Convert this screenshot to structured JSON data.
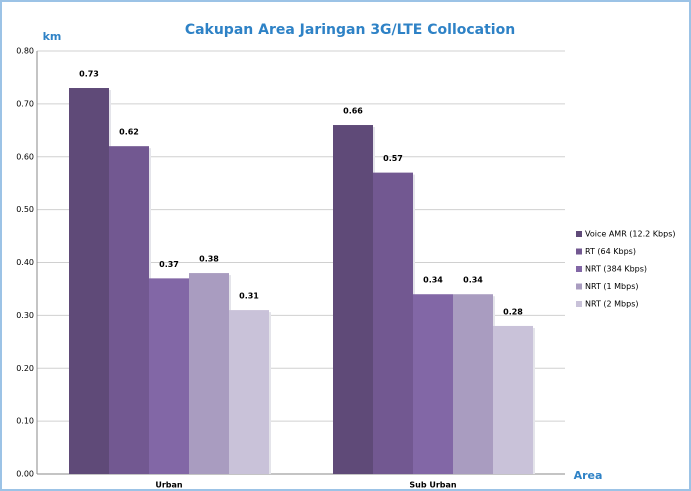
{
  "chart_data": {
    "type": "bar",
    "title": "Cakupan Area Jaringan 3G/LTE Collocation",
    "ylabel": "km",
    "xlabel": "Area",
    "categories": [
      "Urban",
      "Sub Urban"
    ],
    "series": [
      {
        "name": "Voice AMR (12.2 Kbps)",
        "color": "#5f4a78",
        "values": [
          0.73,
          0.66
        ]
      },
      {
        "name": "RT (64 Kbps)",
        "color": "#725891",
        "values": [
          0.62,
          0.57
        ]
      },
      {
        "name": "NRT (384 Kbps)",
        "color": "#8267a6",
        "values": [
          0.37,
          0.34
        ]
      },
      {
        "name": "NRT (1 Mbps)",
        "color": "#a99cc0",
        "values": [
          0.38,
          0.34
        ]
      },
      {
        "name": "NRT (2 Mbps)",
        "color": "#c9c2d9",
        "values": [
          0.31,
          0.28
        ]
      }
    ],
    "ylim": [
      0,
      0.8
    ],
    "yticks": [
      {
        "value": 0,
        "label": "0.00"
      },
      {
        "value": 0.1,
        "label": "0.10"
      },
      {
        "value": 0.2,
        "label": "0.20"
      },
      {
        "value": 0.3,
        "label": "0.30"
      },
      {
        "value": 0.4,
        "label": "0.40"
      },
      {
        "value": 0.5,
        "label": "0.50"
      },
      {
        "value": 0.6,
        "label": "0.60"
      },
      {
        "value": 0.7,
        "label": "0.70"
      },
      {
        "value": 0.8,
        "label": "0.80"
      }
    ],
    "grid": true,
    "legend": "right"
  }
}
